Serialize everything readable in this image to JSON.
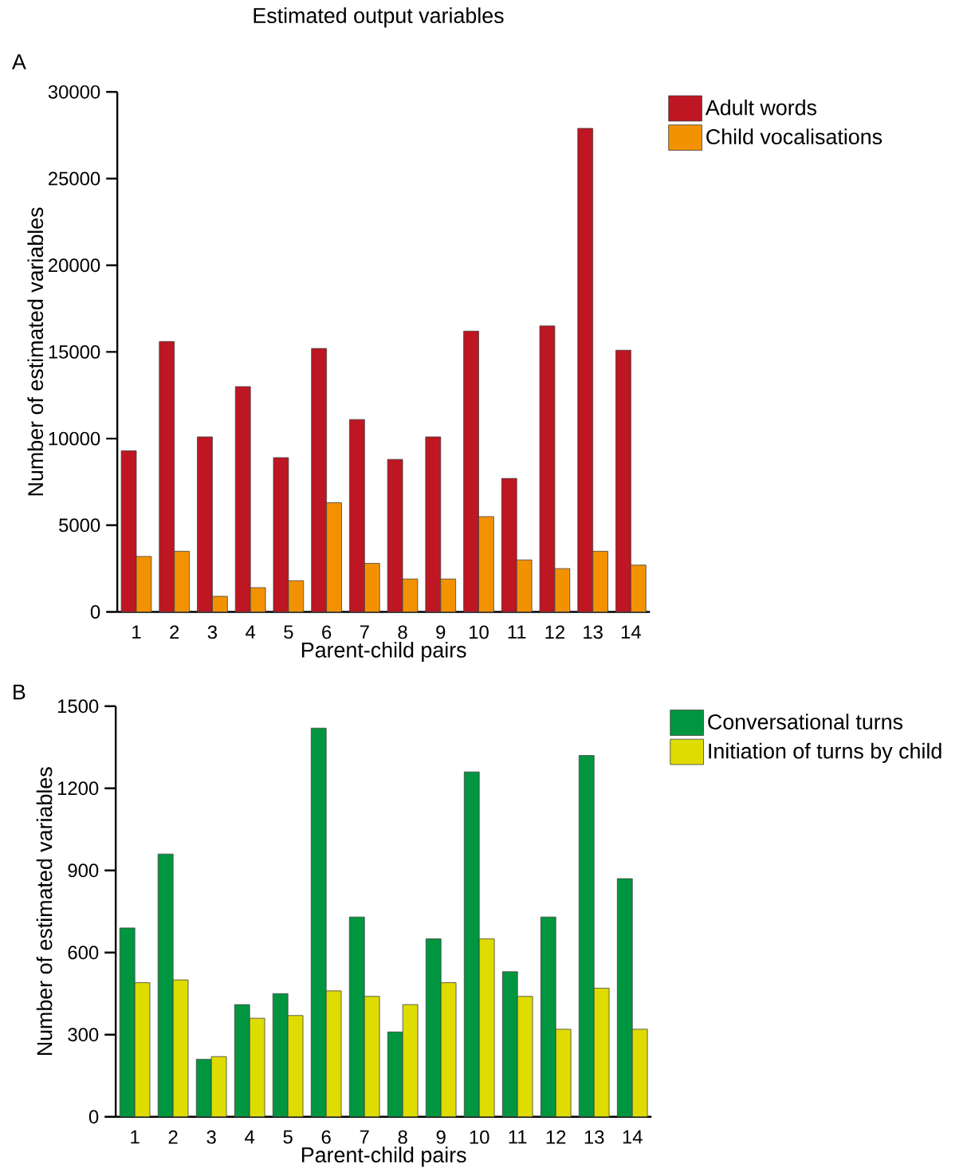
{
  "chart_data": [
    {
      "type": "bar",
      "title": "Estimated output variables",
      "annotations": [
        "A"
      ],
      "xlabel": "Parent-child pairs",
      "ylabel": "Number of estimated variables",
      "categories": [
        "1",
        "2",
        "3",
        "4",
        "5",
        "6",
        "7",
        "8",
        "9",
        "10",
        "11",
        "12",
        "13",
        "14"
      ],
      "series": [
        {
          "name": "Adult words",
          "color": "#be1622",
          "values": [
            9300,
            15600,
            10100,
            13000,
            8900,
            15200,
            11100,
            8800,
            10100,
            16200,
            7700,
            16500,
            27900,
            15100
          ]
        },
        {
          "name": "Child vocalisations",
          "color": "#f39200",
          "values": [
            3200,
            3500,
            900,
            1400,
            1800,
            6300,
            2800,
            1900,
            1900,
            5500,
            3000,
            2500,
            3500,
            2700
          ]
        }
      ],
      "ylim": [
        0,
        30000
      ],
      "yticks": [
        0,
        5000,
        10000,
        15000,
        20000,
        25000,
        30000
      ],
      "legend": "right"
    },
    {
      "type": "bar",
      "annotations": [
        "B"
      ],
      "xlabel": "Parent-child pairs",
      "ylabel": "Number of estimated variables",
      "categories": [
        "1",
        "2",
        "3",
        "4",
        "5",
        "6",
        "7",
        "8",
        "9",
        "10",
        "11",
        "12",
        "13",
        "14"
      ],
      "series": [
        {
          "name": "Conversational turns",
          "color": "#009640",
          "values": [
            690,
            960,
            210,
            410,
            450,
            1420,
            730,
            310,
            650,
            1260,
            530,
            730,
            1320,
            870
          ]
        },
        {
          "name": "Initiation of turns by child",
          "color": "#dedc00",
          "values": [
            490,
            500,
            220,
            360,
            370,
            460,
            440,
            410,
            490,
            650,
            440,
            320,
            470,
            320
          ]
        }
      ],
      "ylim": [
        0,
        1500
      ],
      "yticks": [
        0,
        300,
        600,
        900,
        1200,
        1500
      ],
      "legend": "right"
    }
  ]
}
